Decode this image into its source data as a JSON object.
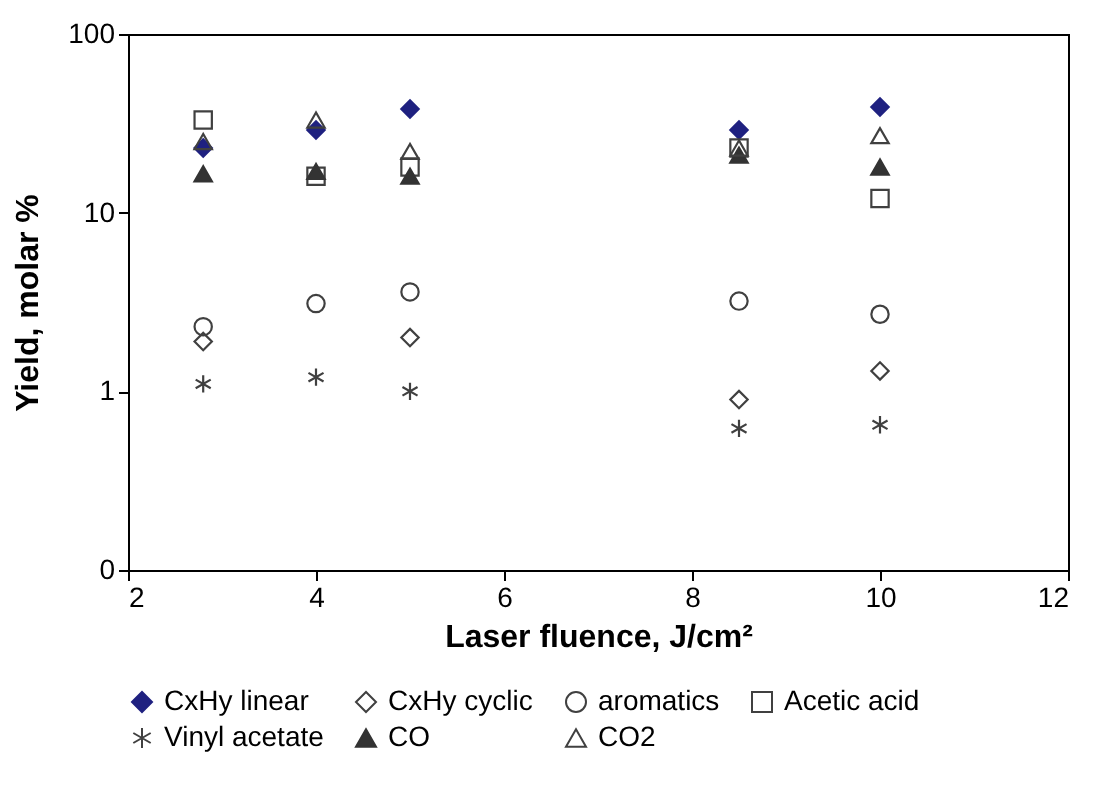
{
  "chart_data": {
    "type": "scatter",
    "xlabel": "Laser fluence, J/cm²",
    "ylabel": "Yield, molar %",
    "x": [
      2.8,
      4,
      5,
      8.5,
      10
    ],
    "xlim": [
      2,
      12
    ],
    "xticks": [
      2,
      4,
      6,
      8,
      10,
      12
    ],
    "ylim": [
      0.1,
      100
    ],
    "yticks": [
      {
        "value": 0.1,
        "label": "0"
      },
      1,
      10,
      100
    ],
    "log": true,
    "grid": false,
    "legend": "bottom",
    "series": [
      {
        "name": "CxHy linear",
        "color": "#1f2180",
        "marker": "diamond",
        "values": [
          23,
          29,
          38,
          29,
          39
        ]
      },
      {
        "name": "CxHy cyclic",
        "color": "#404040",
        "marker": "diamond",
        "values": [
          1.9,
          null,
          2.0,
          0.9,
          1.3
        ]
      },
      {
        "name": "aromatics",
        "color": "#404040",
        "marker": "circle",
        "values": [
          2.3,
          3.1,
          3.6,
          3.2,
          2.7
        ]
      },
      {
        "name": "Acetic acid",
        "color": "#404040",
        "marker": "square",
        "values": [
          33,
          16,
          18,
          23,
          12
        ]
      },
      {
        "name": "Vinyl acetate",
        "color": "#404040",
        "marker": "cross",
        "values": [
          1.1,
          1.2,
          1.0,
          0.62,
          0.65
        ]
      },
      {
        "name": "CO",
        "color": "#333333",
        "marker": "triangle",
        "values": [
          16.5,
          17,
          16,
          21,
          18
        ]
      },
      {
        "name": "CO2",
        "color": "#404040",
        "marker": "triangle",
        "values": [
          25,
          33,
          22,
          23,
          27
        ]
      }
    ]
  }
}
